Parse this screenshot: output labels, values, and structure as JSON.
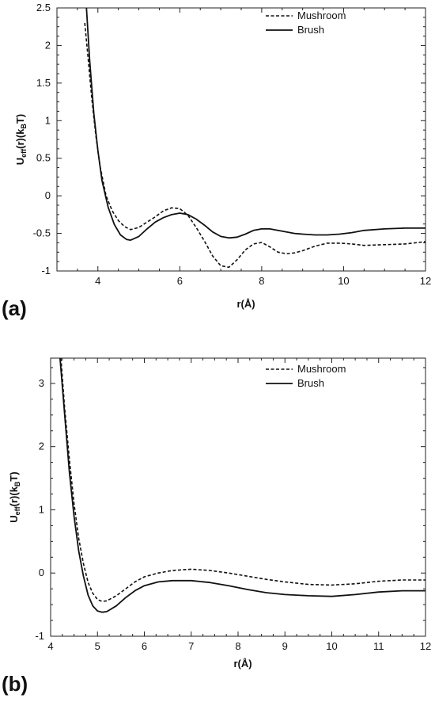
{
  "chart_data": [
    {
      "type": "line",
      "panel_label": "(a)",
      "xlabel": "r(Å)",
      "ylabel_main": "U",
      "ylabel_sub1": "eff",
      "ylabel_mid": "(r)(k",
      "ylabel_sub2": "B",
      "ylabel_end": "T)",
      "xlim": [
        3,
        12
      ],
      "ylim": [
        -1,
        2.5
      ],
      "xticks": [
        4,
        6,
        8,
        10,
        12
      ],
      "yticks": [
        -1,
        -0.5,
        0,
        0.5,
        1,
        1.5,
        2,
        2.5
      ],
      "legend_position": "top-right",
      "series": [
        {
          "name": "Mushroom",
          "style": "dashed",
          "x": [
            3.68,
            3.75,
            3.85,
            3.95,
            4.05,
            4.2,
            4.35,
            4.5,
            4.65,
            4.8,
            5.0,
            5.2,
            5.4,
            5.6,
            5.8,
            6.0,
            6.2,
            6.4,
            6.6,
            6.8,
            7.0,
            7.2,
            7.4,
            7.6,
            7.8,
            8.0,
            8.2,
            8.4,
            8.6,
            8.8,
            9.0,
            9.3,
            9.6,
            9.9,
            10.2,
            10.5,
            11.0,
            11.5,
            12.0
          ],
          "y": [
            2.3,
            1.9,
            1.3,
            0.8,
            0.4,
            0.0,
            -0.2,
            -0.33,
            -0.41,
            -0.45,
            -0.42,
            -0.35,
            -0.28,
            -0.2,
            -0.16,
            -0.17,
            -0.26,
            -0.42,
            -0.6,
            -0.8,
            -0.93,
            -0.95,
            -0.85,
            -0.72,
            -0.64,
            -0.62,
            -0.68,
            -0.75,
            -0.77,
            -0.76,
            -0.73,
            -0.67,
            -0.63,
            -0.63,
            -0.64,
            -0.66,
            -0.65,
            -0.64,
            -0.61
          ]
        },
        {
          "name": "Brush",
          "style": "solid",
          "x": [
            3.72,
            3.8,
            3.9,
            4.0,
            4.1,
            4.25,
            4.4,
            4.55,
            4.7,
            4.8,
            5.0,
            5.2,
            5.4,
            5.6,
            5.8,
            6.0,
            6.2,
            6.4,
            6.6,
            6.8,
            7.0,
            7.2,
            7.4,
            7.6,
            7.8,
            8.0,
            8.2,
            8.5,
            8.8,
            9.0,
            9.3,
            9.6,
            9.9,
            10.2,
            10.5,
            11.0,
            11.5,
            12.0
          ],
          "y": [
            2.5,
            1.8,
            1.1,
            0.6,
            0.2,
            -0.15,
            -0.38,
            -0.52,
            -0.58,
            -0.59,
            -0.54,
            -0.44,
            -0.35,
            -0.29,
            -0.25,
            -0.23,
            -0.25,
            -0.31,
            -0.39,
            -0.48,
            -0.54,
            -0.56,
            -0.55,
            -0.51,
            -0.46,
            -0.44,
            -0.44,
            -0.47,
            -0.5,
            -0.51,
            -0.52,
            -0.52,
            -0.51,
            -0.49,
            -0.46,
            -0.44,
            -0.43,
            -0.43
          ]
        }
      ]
    },
    {
      "type": "line",
      "panel_label": "(b)",
      "xlabel": "r(Å)",
      "ylabel_main": "U",
      "ylabel_sub1": "eff",
      "ylabel_mid": "(r)(k",
      "ylabel_sub2": "B",
      "ylabel_end": "T)",
      "xlim": [
        4,
        12
      ],
      "ylim": [
        -1,
        3.4
      ],
      "xticks": [
        4,
        5,
        6,
        7,
        8,
        9,
        10,
        11,
        12
      ],
      "yticks": [
        -1,
        0,
        1,
        2,
        3
      ],
      "legend_position": "top-right",
      "series": [
        {
          "name": "Mushroom",
          "style": "dashed",
          "x": [
            4.22,
            4.3,
            4.4,
            4.5,
            4.6,
            4.7,
            4.8,
            4.9,
            5.0,
            5.1,
            5.2,
            5.4,
            5.6,
            5.8,
            6.0,
            6.3,
            6.6,
            7.0,
            7.4,
            7.8,
            8.2,
            8.6,
            9.0,
            9.5,
            10.0,
            10.5,
            11.0,
            11.5,
            12.0
          ],
          "y": [
            3.4,
            2.6,
            1.8,
            1.1,
            0.55,
            0.15,
            -0.15,
            -0.32,
            -0.42,
            -0.45,
            -0.44,
            -0.36,
            -0.25,
            -0.14,
            -0.06,
            0.0,
            0.04,
            0.06,
            0.04,
            0.0,
            -0.05,
            -0.1,
            -0.14,
            -0.18,
            -0.19,
            -0.17,
            -0.13,
            -0.11,
            -0.11
          ]
        },
        {
          "name": "Brush",
          "style": "solid",
          "x": [
            4.2,
            4.3,
            4.4,
            4.5,
            4.6,
            4.7,
            4.8,
            4.9,
            5.0,
            5.1,
            5.2,
            5.4,
            5.6,
            5.8,
            6.0,
            6.3,
            6.6,
            7.0,
            7.4,
            7.8,
            8.2,
            8.6,
            9.0,
            9.5,
            10.0,
            10.5,
            11.0,
            11.5,
            12.0
          ],
          "y": [
            3.4,
            2.5,
            1.6,
            0.9,
            0.35,
            -0.05,
            -0.35,
            -0.52,
            -0.6,
            -0.62,
            -0.61,
            -0.52,
            -0.39,
            -0.28,
            -0.2,
            -0.14,
            -0.12,
            -0.12,
            -0.15,
            -0.2,
            -0.26,
            -0.31,
            -0.34,
            -0.36,
            -0.37,
            -0.34,
            -0.3,
            -0.28,
            -0.28
          ]
        }
      ]
    }
  ]
}
